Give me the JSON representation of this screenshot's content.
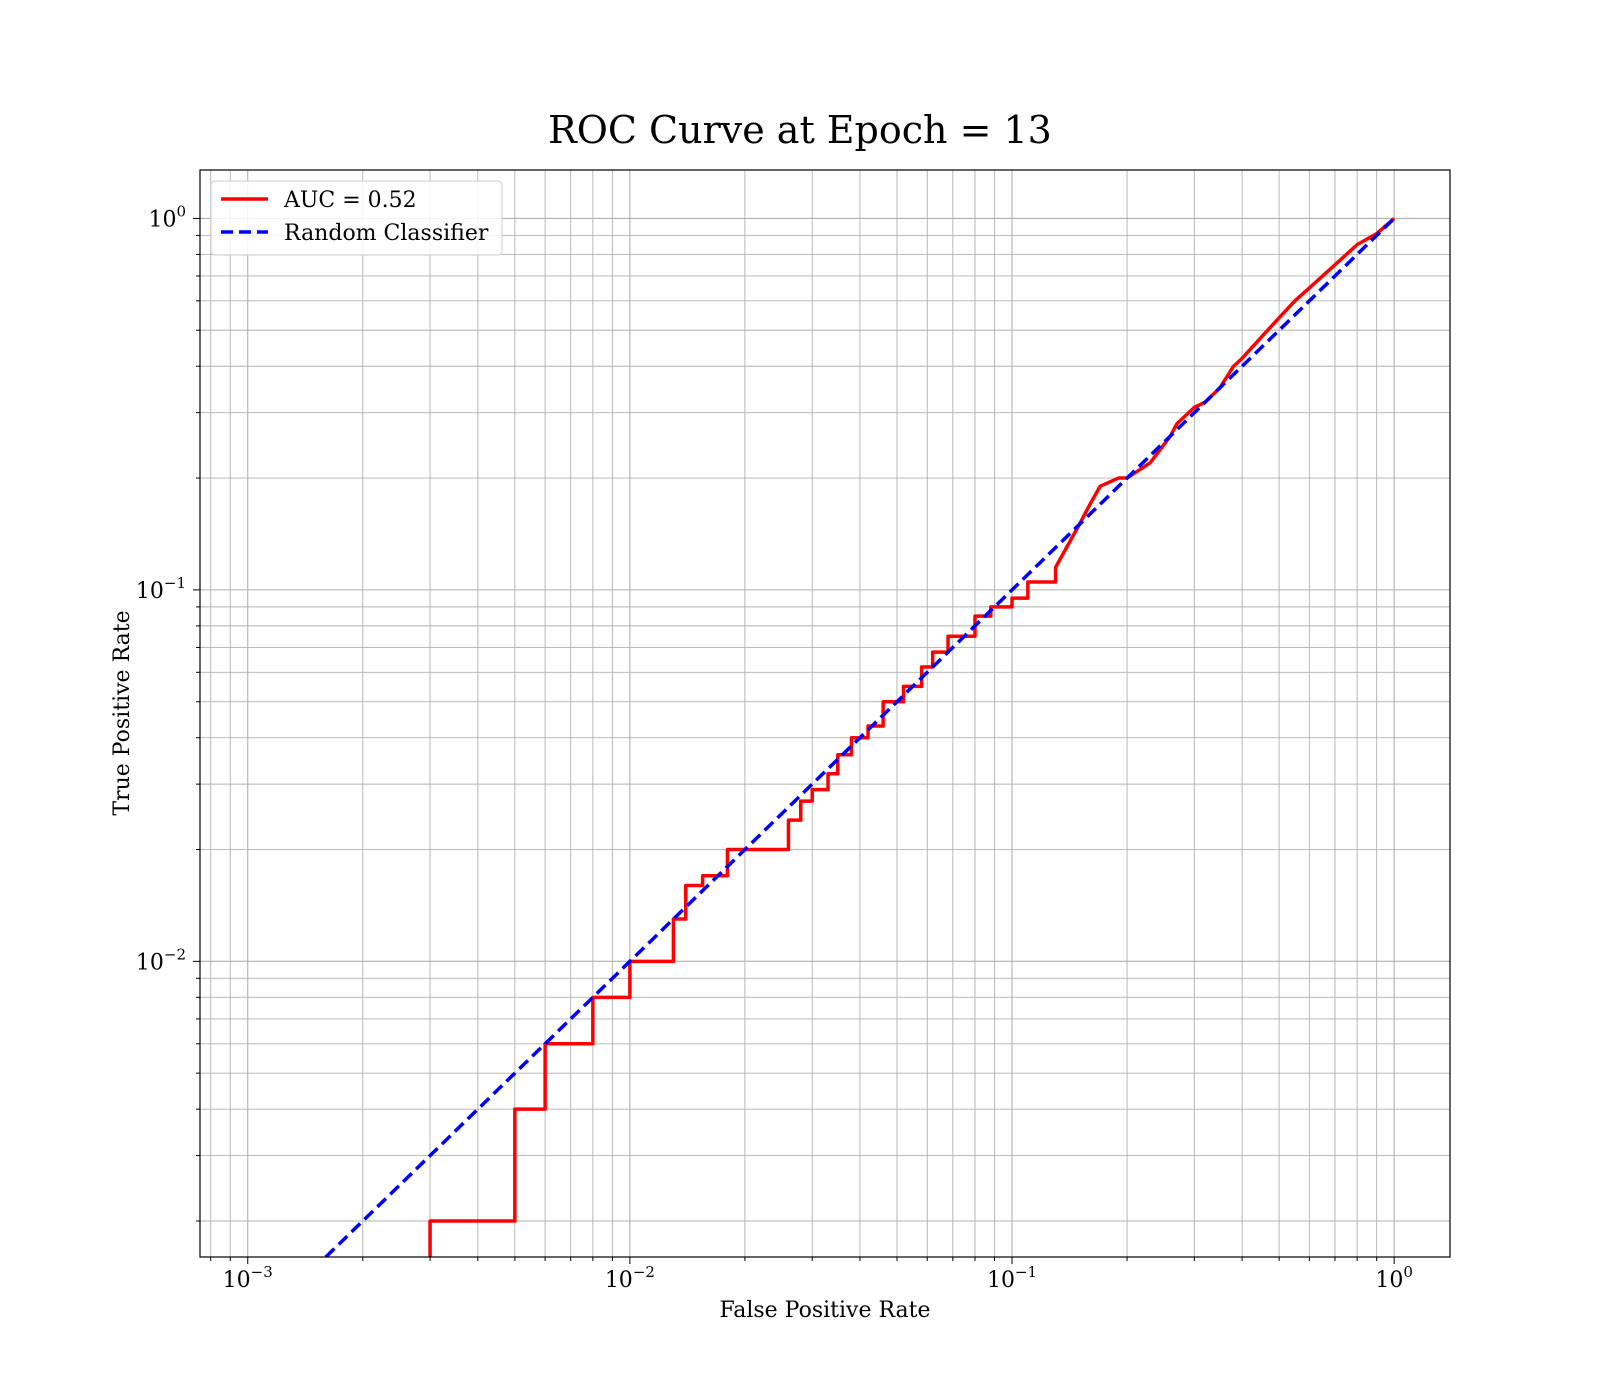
{
  "chart_data": {
    "type": "line",
    "title": "ROC Curve at Epoch = 13",
    "xlabel": "False Positive Rate",
    "ylabel": "True Positive Rate",
    "xscale": "log",
    "yscale": "log",
    "xlim": [
      0.00075,
      1.4
    ],
    "ylim": [
      0.0016,
      1.35
    ],
    "grid": true,
    "legend_position": "upper left",
    "xticks": [
      {
        "value": 0.001,
        "label": "10",
        "exp": "−3"
      },
      {
        "value": 0.01,
        "label": "10",
        "exp": "−2"
      },
      {
        "value": 0.1,
        "label": "10",
        "exp": "−1"
      },
      {
        "value": 1,
        "label": "10",
        "exp": "0"
      }
    ],
    "yticks": [
      {
        "value": 0.01,
        "label": "10",
        "exp": "−2"
      },
      {
        "value": 0.1,
        "label": "10",
        "exp": "−1"
      },
      {
        "value": 1,
        "label": "10",
        "exp": "0"
      }
    ],
    "series": [
      {
        "name": "AUC = 0.52",
        "color": "#ff0000",
        "style": "solid",
        "x": [
          0.003,
          0.003,
          0.005,
          0.005,
          0.006,
          0.006,
          0.008,
          0.008,
          0.01,
          0.01,
          0.013,
          0.013,
          0.014,
          0.014,
          0.0155,
          0.0155,
          0.018,
          0.018,
          0.026,
          0.026,
          0.028,
          0.028,
          0.03,
          0.03,
          0.033,
          0.033,
          0.035,
          0.035,
          0.038,
          0.038,
          0.042,
          0.042,
          0.046,
          0.046,
          0.052,
          0.052,
          0.058,
          0.058,
          0.062,
          0.062,
          0.068,
          0.068,
          0.08,
          0.08,
          0.088,
          0.088,
          0.1,
          0.1,
          0.11,
          0.11,
          0.13,
          0.13,
          0.15,
          0.16,
          0.17,
          0.19,
          0.2,
          0.23,
          0.26,
          0.27,
          0.3,
          0.32,
          0.35,
          0.38,
          0.4,
          0.45,
          0.5,
          0.55,
          0.6,
          0.7,
          0.8,
          0.9,
          1.0
        ],
        "y": [
          0.0016,
          0.002,
          0.002,
          0.004,
          0.004,
          0.006,
          0.006,
          0.008,
          0.008,
          0.01,
          0.01,
          0.013,
          0.013,
          0.016,
          0.016,
          0.017,
          0.017,
          0.02,
          0.02,
          0.024,
          0.024,
          0.027,
          0.027,
          0.029,
          0.029,
          0.032,
          0.032,
          0.036,
          0.036,
          0.04,
          0.04,
          0.043,
          0.043,
          0.05,
          0.05,
          0.055,
          0.055,
          0.062,
          0.062,
          0.068,
          0.068,
          0.075,
          0.075,
          0.085,
          0.085,
          0.09,
          0.09,
          0.095,
          0.095,
          0.105,
          0.105,
          0.115,
          0.15,
          0.17,
          0.19,
          0.2,
          0.2,
          0.22,
          0.26,
          0.28,
          0.31,
          0.32,
          0.35,
          0.4,
          0.42,
          0.48,
          0.54,
          0.6,
          0.65,
          0.75,
          0.85,
          0.91,
          1.0
        ]
      },
      {
        "name": "Random Classifier",
        "color": "#0000ff",
        "style": "dashed",
        "x": [
          0.0016,
          1.0
        ],
        "y": [
          0.0016,
          1.0
        ]
      }
    ]
  }
}
